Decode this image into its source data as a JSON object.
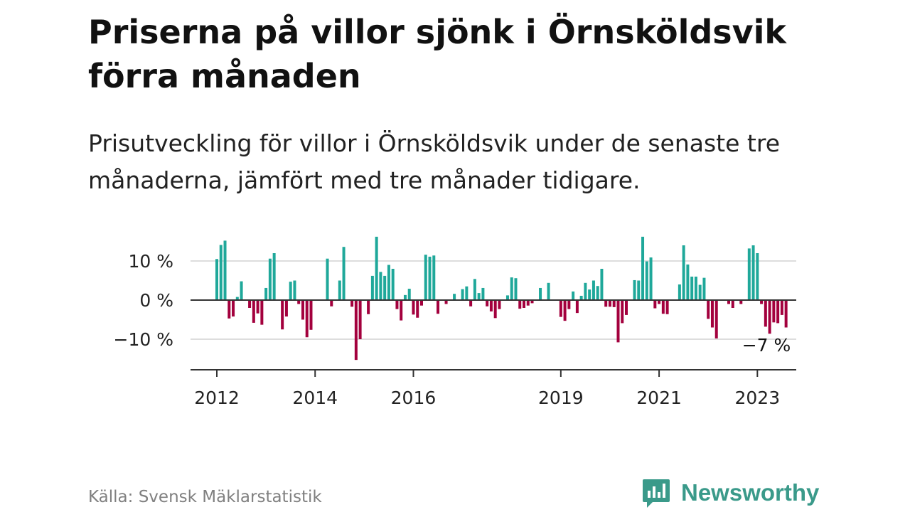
{
  "title": "Priserna på villor sjönk i Örnsköldsvik förra månaden",
  "subtitle": "Prisutveckling för villor i Örnsköldsvik under de senaste tre månaderna, jämfört med tre månader tidigare.",
  "source": "Källa: Svensk Mäklarstatistik",
  "brand": {
    "name": "Newsworthy",
    "logo_icon": "bar-chart-speech-bubble-icon",
    "color": "#3a9a8a"
  },
  "colors": {
    "positive": "#1fa89a",
    "negative": "#a3003d",
    "axis": "#333333",
    "grid": "#dddddd"
  },
  "chart_data": {
    "type": "bar",
    "title": "Priserna på villor sjönk i Örnsköldsvik förra månaden",
    "subtitle": "Prisutveckling för villor i Örnsköldsvik under de senaste tre månaderna, jämfört med tre månader tidigare.",
    "xlabel": "",
    "ylabel": "",
    "unit": "%",
    "ylim": [
      -18,
      18
    ],
    "y_ticks": [
      10,
      0,
      -10
    ],
    "y_tick_labels": [
      "10 %",
      "0 %",
      "−10 %"
    ],
    "grid": true,
    "x_ticks": [
      2012,
      2014,
      2016,
      2019,
      2021,
      2023
    ],
    "x_tick_labels": [
      "2012",
      "2014",
      "2016",
      "2019",
      "2021",
      "2023"
    ],
    "x_start": "2012-01",
    "annotation": "−7 %",
    "values": [
      10.5,
      14.1,
      15.2,
      -4.7,
      -4.2,
      0.8,
      4.8,
      0.0,
      -2.0,
      -5.8,
      -3.4,
      -6.3,
      3.1,
      10.6,
      12.0,
      0.0,
      -7.5,
      -4.2,
      4.7,
      5.0,
      -1.0,
      -5.0,
      -9.5,
      -7.6,
      0.0,
      0.0,
      0.0,
      10.6,
      -1.6,
      0.0,
      5.0,
      13.6,
      0.0,
      -1.7,
      -15.3,
      -10.0,
      0.0,
      -3.6,
      6.2,
      16.2,
      7.2,
      6.2,
      9.0,
      8.0,
      -2.3,
      -5.2,
      1.3,
      2.9,
      -3.7,
      -4.5,
      -1.4,
      11.6,
      11.1,
      11.4,
      -3.5,
      0.0,
      -1.0,
      0.0,
      1.6,
      0.0,
      2.8,
      3.5,
      -1.6,
      5.4,
      1.8,
      3.1,
      -1.6,
      -2.9,
      -4.6,
      -2.3,
      0.0,
      1.2,
      5.8,
      5.6,
      -2.2,
      -2.0,
      -1.4,
      -0.8,
      0.0,
      3.1,
      0.0,
      4.4,
      0.0,
      0.0,
      -4.3,
      -5.3,
      -2.3,
      2.2,
      -3.3,
      1.1,
      4.4,
      2.7,
      5.0,
      3.6,
      8.0,
      -1.7,
      -1.7,
      -1.8,
      -10.8,
      -5.9,
      -3.8,
      0.0,
      5.1,
      5.0,
      16.2,
      9.9,
      10.9,
      -2.1,
      -1.0,
      -3.5,
      -3.6,
      0.0,
      0.0,
      4.0,
      14.0,
      9.1,
      6.0,
      6.0,
      3.9,
      5.7,
      -4.8,
      -7.0,
      -9.8,
      0.0,
      0.0,
      -1.0,
      -2.0,
      0.0,
      -1.0,
      0.0,
      13.2,
      14.0,
      12.0,
      -1.0,
      -6.8,
      -8.6,
      -5.7,
      -5.9,
      -3.8,
      -7.0
    ]
  }
}
